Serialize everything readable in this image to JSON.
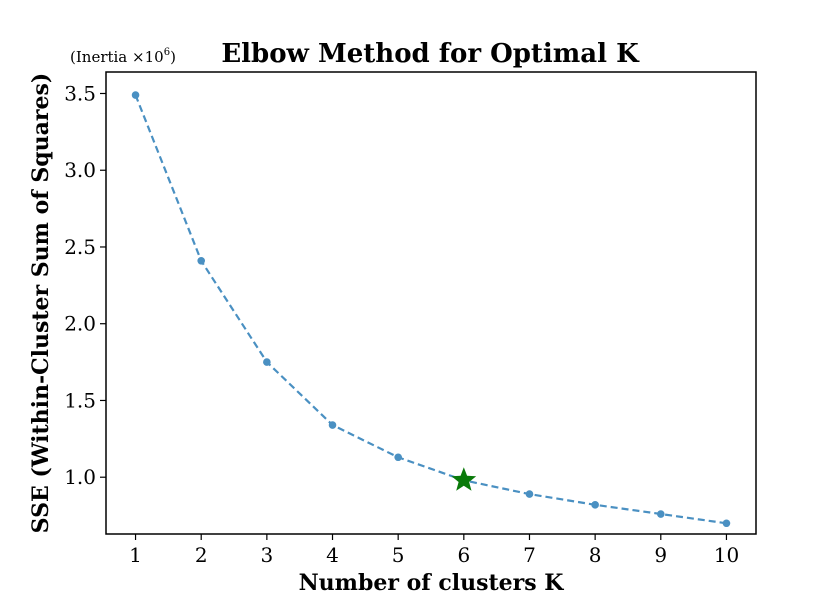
{
  "chart_data": {
    "type": "line",
    "title": "Elbow Method for Optimal K",
    "xlabel": "Number of clusters K",
    "ylabel": "SSE (Within-Cluster Sum of Squares)",
    "y_offset_label": {
      "prefix": "(Inertia ×10",
      "exponent": "6",
      "suffix": ")"
    },
    "x": [
      1,
      2,
      3,
      4,
      5,
      6,
      7,
      8,
      9,
      10
    ],
    "values": [
      3.49,
      2.41,
      1.75,
      1.34,
      1.13,
      0.98,
      0.89,
      0.82,
      0.76,
      0.7
    ],
    "series_color": "#4a90c2",
    "optimal_k": 6,
    "optimal_value": 0.98,
    "optimal_marker_color": "#0a7a0a",
    "xlim": [
      0.55,
      10.45
    ],
    "ylim": [
      0.63,
      3.64
    ],
    "xticks": [
      1,
      2,
      3,
      4,
      5,
      6,
      7,
      8,
      9,
      10
    ],
    "yticks": [
      1.0,
      1.5,
      2.0,
      2.5,
      3.0,
      3.5
    ],
    "ytick_labels": [
      "1.0",
      "1.5",
      "2.0",
      "2.5",
      "3.0",
      "3.5"
    ]
  }
}
